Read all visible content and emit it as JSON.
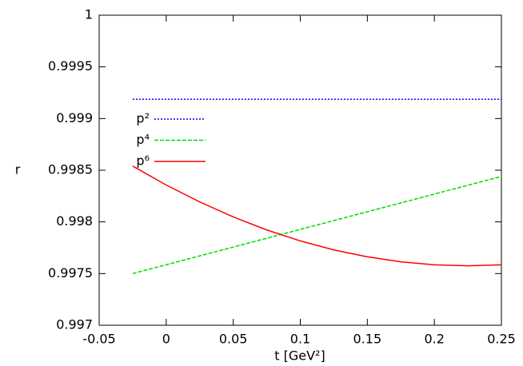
{
  "chart_data": {
    "type": "line",
    "xlabel": "t [GeV²]",
    "ylabel": "r",
    "xlim": [
      -0.05,
      0.25
    ],
    "xticks": [
      -0.05,
      0,
      0.05,
      0.1,
      0.15,
      0.2,
      0.25
    ],
    "ylim": [
      0.997,
      1
    ],
    "yticks": [
      0.997,
      0.9975,
      0.998,
      0.9985,
      0.999,
      0.9995,
      1
    ],
    "legend": "upper left",
    "series": [
      {
        "name": "p²",
        "color": "#0000ff",
        "dash": "dotted",
        "x": [
          -0.025,
          0.25
        ],
        "values": [
          0.999186,
          0.999186
        ]
      },
      {
        "name": "p⁴",
        "color": "#00dd00",
        "dash": "dashed",
        "x": [
          -0.025,
          0.25
        ],
        "values": [
          0.9975,
          0.99844
        ]
      },
      {
        "name": "p⁶",
        "color": "#ff0000",
        "dash": "solid",
        "x": [
          -0.025,
          0,
          0.025,
          0.05,
          0.075,
          0.1,
          0.125,
          0.15,
          0.175,
          0.2,
          0.225,
          0.25
        ],
        "values": [
          0.99854,
          0.998357,
          0.998193,
          0.998048,
          0.997922,
          0.997816,
          0.997729,
          0.997662,
          0.997614,
          0.997585,
          0.997575,
          0.997585
        ]
      }
    ]
  }
}
